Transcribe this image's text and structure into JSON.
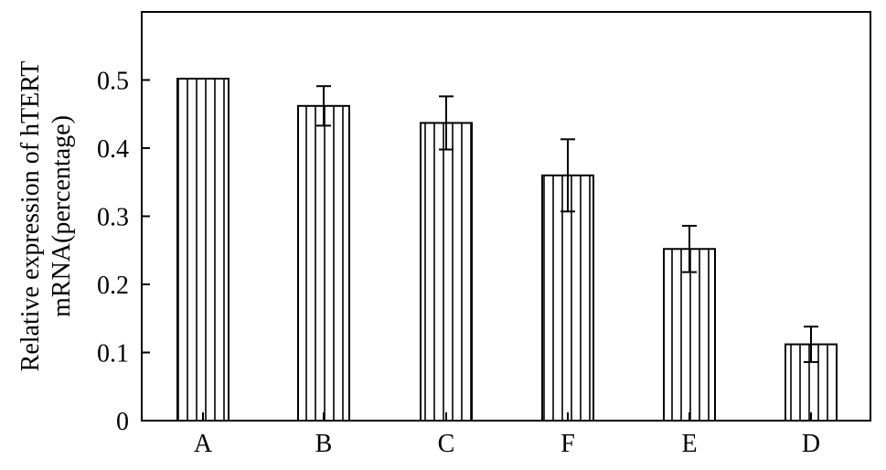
{
  "chart_data": {
    "type": "bar",
    "title": "",
    "xlabel": "",
    "ylabel": [
      "Relative expression of hTERT",
      "mRNA(percentage)"
    ],
    "categories": [
      "A",
      "B",
      "C",
      "F",
      "E",
      "D"
    ],
    "values": [
      0.502,
      0.462,
      0.437,
      0.36,
      0.252,
      0.112
    ],
    "errors": [
      0.0,
      0.029,
      0.039,
      0.053,
      0.034,
      0.026
    ],
    "ylim": [
      0,
      0.6
    ],
    "yticks": [
      0,
      0.1,
      0.2,
      0.3,
      0.4,
      0.5
    ],
    "ytick_labels": [
      "0",
      "0.1",
      "0.2",
      "0.3",
      "0.4",
      "0.5"
    ],
    "grid": false,
    "bar_fill": "vertical-hatch",
    "colors": {
      "bar_stroke": "#000000",
      "bar_fill": "#ffffff",
      "axis": "#000000"
    }
  }
}
